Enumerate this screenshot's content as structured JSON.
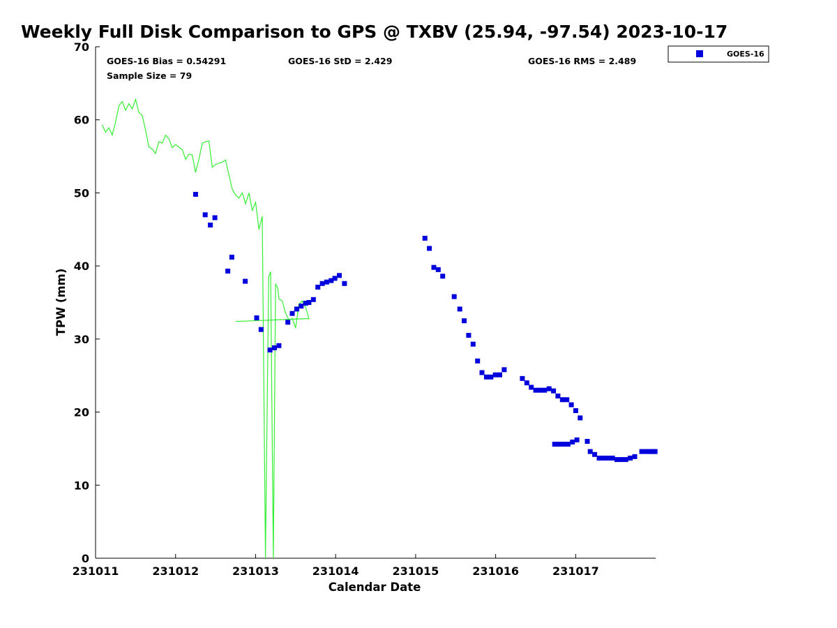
{
  "chart_data": {
    "type": "scatter",
    "title": "Weekly Full Disk Comparison to GPS @ TXBV (25.94, -97.54) 2023-10-17",
    "xlabel": "Calendar Date",
    "ylabel": "TPW (mm)",
    "xlim": [
      "2023-10-11 00:00",
      "2023-10-17 23:59"
    ],
    "ylim": [
      0,
      70
    ],
    "x_ticks": [
      "231011",
      "231012",
      "231013",
      "231014",
      "231015",
      "231016",
      "231017"
    ],
    "y_ticks": [
      0,
      10,
      20,
      30,
      40,
      50,
      60,
      70
    ],
    "grid": false,
    "legend_position": "top-right",
    "stats": {
      "bias": "GOES-16 Bias = 0.54291",
      "std": "GOES-16 StD = 2.429",
      "rms": "GOES-16 RMS = 2.489",
      "sample": "Sample Size = 79"
    },
    "colors": {
      "gps_line": "#33ee33",
      "goes_marker": "#0000dd"
    },
    "series": [
      {
        "name": "GOES-16",
        "kind": "markers",
        "points": [
          [
            "2023-10-12 06:00",
            49.8
          ],
          [
            "2023-10-12 08:53",
            47.0
          ],
          [
            "2023-10-12 10:26",
            45.6
          ],
          [
            "2023-10-12 11:47",
            46.6
          ],
          [
            "2023-10-12 15:40",
            39.3
          ],
          [
            "2023-10-12 16:53",
            41.2
          ],
          [
            "2023-10-12 20:53",
            37.9
          ],
          [
            "2023-10-13 00:19",
            32.9
          ],
          [
            "2023-10-13 01:39",
            31.3
          ],
          [
            "2023-10-13 04:19",
            28.5
          ],
          [
            "2023-10-13 05:40",
            28.8
          ],
          [
            "2023-10-13 07:00",
            29.1
          ],
          [
            "2023-10-13 09:40",
            32.3
          ],
          [
            "2023-10-13 11:00",
            33.5
          ],
          [
            "2023-10-13 12:20",
            34.1
          ],
          [
            "2023-10-13 13:40",
            34.5
          ],
          [
            "2023-10-13 15:00",
            34.9
          ],
          [
            "2023-10-13 16:00",
            35.0
          ],
          [
            "2023-10-13 17:20",
            35.4
          ],
          [
            "2023-10-13 18:40",
            37.1
          ],
          [
            "2023-10-13 20:00",
            37.6
          ],
          [
            "2023-10-13 21:20",
            37.8
          ],
          [
            "2023-10-13 22:40",
            38.0
          ],
          [
            "2023-10-13 23:47",
            38.3
          ],
          [
            "2023-10-14 01:07",
            38.7
          ],
          [
            "2023-10-14 02:40",
            37.6
          ],
          [
            "2023-10-15 02:47",
            43.8
          ],
          [
            "2023-10-15 04:07",
            42.4
          ],
          [
            "2023-10-15 05:27",
            39.8
          ],
          [
            "2023-10-15 06:47",
            39.5
          ],
          [
            "2023-10-15 08:07",
            38.6
          ],
          [
            "2023-10-15 11:34",
            35.8
          ],
          [
            "2023-10-15 13:14",
            34.1
          ],
          [
            "2023-10-15 14:34",
            32.5
          ],
          [
            "2023-10-15 15:54",
            30.5
          ],
          [
            "2023-10-15 17:14",
            29.3
          ],
          [
            "2023-10-15 18:34",
            27.0
          ],
          [
            "2023-10-15 19:54",
            25.4
          ],
          [
            "2023-10-15 21:14",
            24.8
          ],
          [
            "2023-10-15 22:34",
            24.8
          ],
          [
            "2023-10-15 23:54",
            25.1
          ],
          [
            "2023-10-16 01:14",
            25.1
          ],
          [
            "2023-10-16 02:34",
            25.8
          ],
          [
            "2023-10-16 08:01",
            24.6
          ],
          [
            "2023-10-16 09:21",
            24.0
          ],
          [
            "2023-10-16 10:41",
            23.4
          ],
          [
            "2023-10-16 12:01",
            23.0
          ],
          [
            "2023-10-16 13:21",
            23.0
          ],
          [
            "2023-10-16 14:41",
            23.0
          ],
          [
            "2023-10-16 16:01",
            23.2
          ],
          [
            "2023-10-16 17:21",
            22.9
          ],
          [
            "2023-10-16 18:41",
            22.2
          ],
          [
            "2023-10-16 20:01",
            21.7
          ],
          [
            "2023-10-16 21:21",
            21.7
          ],
          [
            "2023-10-16 22:41",
            21.0
          ],
          [
            "2023-10-17 00:01",
            20.2
          ],
          [
            "2023-10-17 01:21",
            19.2
          ],
          [
            "2023-10-16 17:42",
            15.6
          ],
          [
            "2023-10-16 19:02",
            15.6
          ],
          [
            "2023-10-16 20:22",
            15.6
          ],
          [
            "2023-10-16 21:42",
            15.6
          ],
          [
            "2023-10-16 23:02",
            15.9
          ],
          [
            "2023-10-17 00:22",
            16.2
          ],
          [
            "2023-10-17 03:29",
            16.0
          ],
          [
            "2023-10-17 04:22",
            14.6
          ],
          [
            "2023-10-17 05:42",
            14.2
          ],
          [
            "2023-10-17 07:02",
            13.7
          ],
          [
            "2023-10-17 08:22",
            13.7
          ],
          [
            "2023-10-17 09:42",
            13.7
          ],
          [
            "2023-10-17 11:02",
            13.7
          ],
          [
            "2023-10-17 12:22",
            13.5
          ],
          [
            "2023-10-17 13:42",
            13.5
          ],
          [
            "2023-10-17 15:02",
            13.5
          ],
          [
            "2023-10-17 16:22",
            13.7
          ],
          [
            "2023-10-17 17:42",
            13.9
          ],
          [
            "2023-10-17 19:49",
            14.6
          ],
          [
            "2023-10-17 21:09",
            14.6
          ],
          [
            "2023-10-17 22:29",
            14.6
          ],
          [
            "2023-10-17 23:09",
            14.6
          ],
          [
            "2023-10-17 23:49",
            14.6
          ]
        ]
      },
      {
        "kind": "line",
        "points": [
          [
            "2023-10-11 02:00",
            59.3
          ],
          [
            "2023-10-11 03:00",
            58.3
          ],
          [
            "2023-10-11 04:00",
            58.9
          ],
          [
            "2023-10-11 05:00",
            57.9
          ],
          [
            "2023-10-11 06:00",
            59.7
          ],
          [
            "2023-10-11 07:00",
            61.9
          ],
          [
            "2023-10-11 08:00",
            62.5
          ],
          [
            "2023-10-11 09:00",
            61.3
          ],
          [
            "2023-10-11 10:00",
            62.2
          ],
          [
            "2023-10-11 11:00",
            61.5
          ],
          [
            "2023-10-11 12:00",
            62.8
          ],
          [
            "2023-10-11 13:00",
            61.0
          ],
          [
            "2023-10-11 14:00",
            60.6
          ],
          [
            "2023-10-11 15:00",
            58.6
          ],
          [
            "2023-10-11 16:00",
            56.3
          ],
          [
            "2023-10-11 17:00",
            56.0
          ],
          [
            "2023-10-11 18:00",
            55.4
          ],
          [
            "2023-10-11 19:00",
            57.0
          ],
          [
            "2023-10-11 20:00",
            56.8
          ],
          [
            "2023-10-11 21:00",
            57.9
          ],
          [
            "2023-10-11 22:00",
            57.4
          ],
          [
            "2023-10-11 23:00",
            56.2
          ],
          [
            "2023-10-12 00:00",
            56.6
          ],
          [
            "2023-10-12 02:00",
            55.9
          ],
          [
            "2023-10-12 03:00",
            54.6
          ],
          [
            "2023-10-12 04:00",
            55.3
          ],
          [
            "2023-10-12 05:00",
            55.2
          ],
          [
            "2023-10-12 06:00",
            52.8
          ],
          [
            "2023-10-12 07:00",
            54.6
          ],
          [
            "2023-10-12 08:00",
            56.8
          ],
          [
            "2023-10-12 09:00",
            57.0
          ],
          [
            "2023-10-12 10:00",
            57.1
          ],
          [
            "2023-10-12 11:00",
            53.5
          ],
          [
            "2023-10-12 12:00",
            53.9
          ],
          [
            "2023-10-12 14:00",
            54.2
          ],
          [
            "2023-10-12 15:00",
            54.5
          ],
          [
            "2023-10-12 16:00",
            52.5
          ],
          [
            "2023-10-12 17:00",
            50.5
          ],
          [
            "2023-10-12 18:00",
            49.7
          ],
          [
            "2023-10-12 19:00",
            49.3
          ],
          [
            "2023-10-12 20:00",
            50.0
          ],
          [
            "2023-10-12 21:00",
            48.5
          ],
          [
            "2023-10-12 22:00",
            50.0
          ],
          [
            "2023-10-12 23:00",
            47.6
          ],
          [
            "2023-10-13 00:00",
            48.7
          ],
          [
            "2023-10-13 01:00",
            45.0
          ],
          [
            "2023-10-13 02:00",
            46.8
          ],
          [
            "2023-10-13 02:58",
            0.0
          ],
          [
            "2023-10-13 03:55",
            38.5
          ],
          [
            "2023-10-13 04:31",
            39.2
          ],
          [
            "2023-10-13 05:20",
            0.0
          ],
          [
            "2023-10-13 06:00",
            37.5
          ],
          [
            "2023-10-13 06:40",
            37.0
          ],
          [
            "2023-10-13 07:00",
            35.5
          ],
          [
            "2023-10-13 08:00",
            35.2
          ],
          [
            "2023-10-13 09:00",
            33.5
          ],
          [
            "2023-10-13 10:00",
            32.6
          ],
          [
            "2023-10-13 11:00",
            32.8
          ],
          [
            "2023-10-13 12:00",
            31.5
          ],
          [
            "2023-10-13 13:00",
            34.8
          ],
          [
            "2023-10-13 14:00",
            35.2
          ],
          [
            "2023-10-13 15:00",
            34.3
          ],
          [
            "2023-10-13 16:00",
            32.8
          ],
          [
            "2023-10-12 18:00",
            32.4
          ]
        ]
      }
    ]
  },
  "legend": {
    "label": "GOES-16"
  }
}
